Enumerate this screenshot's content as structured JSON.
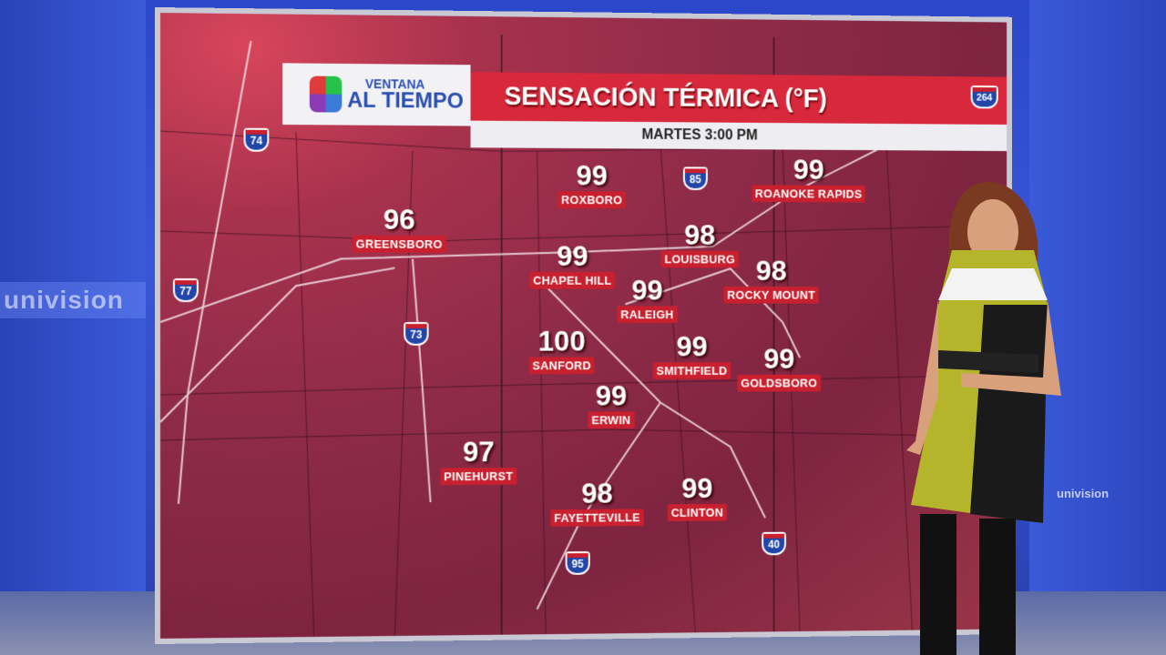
{
  "branding": {
    "logo_line1": "VENTANA",
    "logo_line2": "AL TIEMPO",
    "network": "univision"
  },
  "header": {
    "title": "SENSACIÓN TÉRMICA (°F)",
    "subtitle": "MARTES 3:00 PM"
  },
  "colors": {
    "title_bar": "#d8283c",
    "label": "#c8202e",
    "map": "#8e2b48",
    "studio": "#3856d8"
  },
  "cities": [
    {
      "name": "GREENSBORO",
      "value": "96"
    },
    {
      "name": "ROXBORO",
      "value": "99"
    },
    {
      "name": "ROANOKE RAPIDS",
      "value": "99"
    },
    {
      "name": "LOUISBURG",
      "value": "98"
    },
    {
      "name": "CHAPEL HILL",
      "value": "99"
    },
    {
      "name": "ROCKY MOUNT",
      "value": "98"
    },
    {
      "name": "RALEIGH",
      "value": "99"
    },
    {
      "name": "SANFORD",
      "value": "100"
    },
    {
      "name": "SMITHFIELD",
      "value": "99"
    },
    {
      "name": "GOLDSBORO",
      "value": "99"
    },
    {
      "name": "ERWIN",
      "value": "99"
    },
    {
      "name": "PINEHURST",
      "value": "97"
    },
    {
      "name": "FAYETTEVILLE",
      "value": "98"
    },
    {
      "name": "CLINTON",
      "value": "99"
    }
  ],
  "highways": [
    "74",
    "85",
    "77",
    "73",
    "95",
    "40",
    "264"
  ]
}
